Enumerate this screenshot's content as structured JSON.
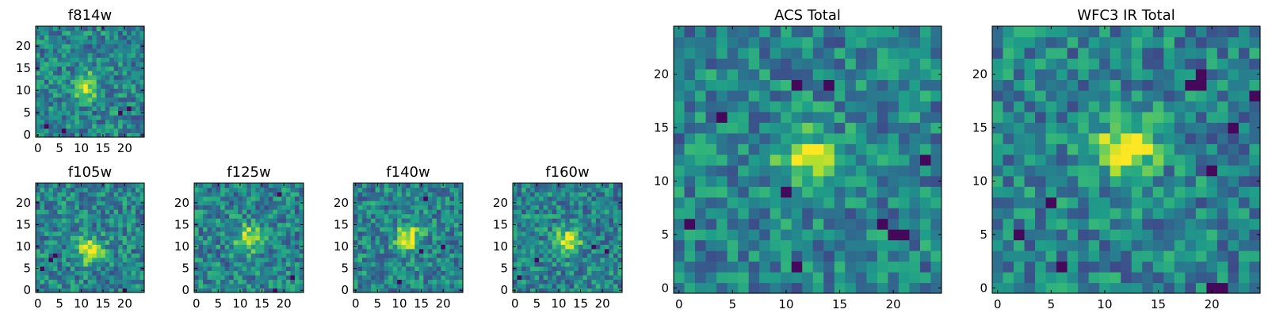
{
  "chart_data": [
    {
      "type": "heatmap",
      "title": "f814w",
      "grid": 25,
      "xlim": [
        0,
        25
      ],
      "ylim": [
        0,
        25
      ],
      "xticks": [
        0,
        5,
        10,
        15,
        20
      ],
      "yticks": [
        0,
        5,
        10,
        15,
        20
      ],
      "colormap": "viridis",
      "peak": [
        11,
        11
      ],
      "peak_strength": 0.5,
      "seed": 11,
      "dark_pixels": [
        [
          19,
          5
        ],
        [
          2,
          2
        ],
        [
          21,
          6
        ],
        [
          6,
          1
        ]
      ]
    },
    {
      "type": "heatmap",
      "title": "f105w",
      "grid": 25,
      "xlim": [
        0,
        25
      ],
      "ylim": [
        0,
        25
      ],
      "xticks": [
        0,
        5,
        10,
        15,
        20
      ],
      "yticks": [
        0,
        5,
        10,
        15,
        20
      ],
      "colormap": "viridis",
      "peak": [
        12,
        9
      ],
      "peak_strength": 0.55,
      "seed": 23,
      "dark_pixels": [
        [
          3,
          7
        ],
        [
          4,
          8
        ],
        [
          20,
          0
        ],
        [
          1,
          5
        ]
      ]
    },
    {
      "type": "heatmap",
      "title": "f125w",
      "grid": 25,
      "xlim": [
        0,
        25
      ],
      "ylim": [
        0,
        25
      ],
      "xticks": [
        0,
        5,
        10,
        15,
        20
      ],
      "yticks": [
        0,
        5,
        10,
        15,
        20
      ],
      "colormap": "viridis",
      "peak": [
        12,
        12
      ],
      "peak_strength": 0.5,
      "seed": 37,
      "dark_pixels": [
        [
          19,
          22
        ],
        [
          22,
          3
        ],
        [
          18,
          0
        ]
      ]
    },
    {
      "type": "heatmap",
      "title": "f140w",
      "grid": 25,
      "xlim": [
        0,
        25
      ],
      "ylim": [
        0,
        25
      ],
      "xticks": [
        0,
        5,
        10,
        15,
        20
      ],
      "yticks": [
        0,
        5,
        10,
        15,
        20
      ],
      "colormap": "viridis",
      "peak": [
        12,
        12
      ],
      "peak_strength": 0.55,
      "seed": 41,
      "dark_pixels": [
        [
          15,
          9
        ],
        [
          20,
          10
        ],
        [
          10,
          2
        ],
        [
          16,
          21
        ]
      ]
    },
    {
      "type": "heatmap",
      "title": "f160w",
      "grid": 25,
      "xlim": [
        0,
        25
      ],
      "ylim": [
        0,
        25
      ],
      "xticks": [
        0,
        5,
        10,
        15,
        20
      ],
      "yticks": [
        0,
        5,
        10,
        15,
        20
      ],
      "colormap": "viridis",
      "peak": [
        12,
        11
      ],
      "peak_strength": 0.55,
      "seed": 53,
      "dark_pixels": [
        [
          5,
          7
        ],
        [
          18,
          10
        ],
        [
          1,
          3
        ],
        [
          21,
          9
        ]
      ]
    },
    {
      "type": "heatmap",
      "title": "ACS Total",
      "grid": 25,
      "xlim": [
        0,
        25
      ],
      "ylim": [
        0,
        25
      ],
      "xticks": [
        0,
        5,
        10,
        15,
        20
      ],
      "yticks": [
        0,
        5,
        10,
        15,
        20
      ],
      "colormap": "viridis",
      "peak": [
        12,
        12
      ],
      "peak_strength": 0.45,
      "seed": 67,
      "dark_pixels": [
        [
          11,
          19
        ],
        [
          14,
          19
        ],
        [
          10,
          9
        ],
        [
          19,
          6
        ],
        [
          20,
          5
        ],
        [
          21,
          5
        ],
        [
          11,
          2
        ],
        [
          23,
          12
        ],
        [
          1,
          6
        ],
        [
          4,
          16
        ]
      ]
    },
    {
      "type": "heatmap",
      "title": "WFC3 IR Total",
      "grid": 25,
      "xlim": [
        0,
        25
      ],
      "ylim": [
        0,
        25
      ],
      "xticks": [
        0,
        5,
        10,
        15,
        20
      ],
      "yticks": [
        0,
        5,
        10,
        15,
        20
      ],
      "colormap": "viridis",
      "peak": [
        12,
        13
      ],
      "peak_strength": 0.55,
      "seed": 79,
      "dark_pixels": [
        [
          18,
          19
        ],
        [
          19,
          19
        ],
        [
          19,
          20
        ],
        [
          24,
          18
        ],
        [
          20,
          11
        ],
        [
          5,
          8
        ],
        [
          2,
          5
        ],
        [
          6,
          2
        ],
        [
          20,
          0
        ],
        [
          21,
          0
        ],
        [
          22,
          15
        ]
      ]
    }
  ]
}
